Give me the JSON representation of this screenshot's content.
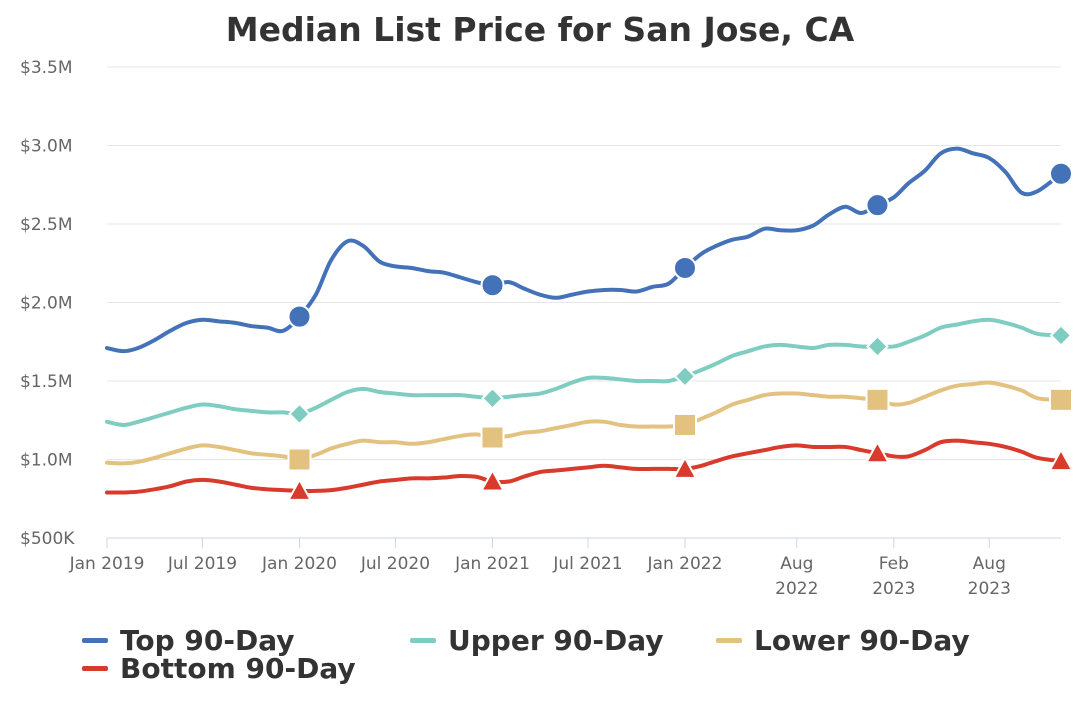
{
  "chart_data": {
    "type": "line",
    "title": "Median List Price for San Jose, CA",
    "xlabel": "",
    "ylabel": "",
    "ylim": [
      500000,
      3500000
    ],
    "yticks": [
      {
        "value": 500000,
        "label": "$500K"
      },
      {
        "value": 1000000,
        "label": "$1.0M"
      },
      {
        "value": 1500000,
        "label": "$1.5M"
      },
      {
        "value": 2000000,
        "label": "$2.0M"
      },
      {
        "value": 2500000,
        "label": "$2.5M"
      },
      {
        "value": 3000000,
        "label": "$3.0M"
      },
      {
        "value": 3500000,
        "label": "$3.5M"
      }
    ],
    "xlim": [
      "2019-01-01",
      "2023-12-15"
    ],
    "xticks": [
      {
        "date": "2019-01-01",
        "lines": [
          "Jan 2019"
        ]
      },
      {
        "date": "2019-07-01",
        "lines": [
          "Jul 2019"
        ]
      },
      {
        "date": "2020-01-01",
        "lines": [
          "Jan 2020"
        ]
      },
      {
        "date": "2020-07-01",
        "lines": [
          "Jul 2020"
        ]
      },
      {
        "date": "2021-01-01",
        "lines": [
          "Jan 2021"
        ]
      },
      {
        "date": "2021-07-01",
        "lines": [
          "Jul 2021"
        ]
      },
      {
        "date": "2022-01-01",
        "lines": [
          "Jan 2022"
        ]
      },
      {
        "date": "2022-08-01",
        "lines": [
          "Aug",
          "2022"
        ]
      },
      {
        "date": "2023-02-01",
        "lines": [
          "Feb",
          "2023"
        ]
      },
      {
        "date": "2023-08-01",
        "lines": [
          "Aug",
          "2023"
        ]
      }
    ],
    "grid": true,
    "legend_position": "bottom",
    "series": [
      {
        "name": "Top 90-Day",
        "color": "#4472b8",
        "marker": "circle",
        "points": [
          [
            "2019-01-01",
            1710000
          ],
          [
            "2019-02-01",
            1690000
          ],
          [
            "2019-03-01",
            1710000
          ],
          [
            "2019-04-01",
            1760000
          ],
          [
            "2019-05-01",
            1820000
          ],
          [
            "2019-06-01",
            1870000
          ],
          [
            "2019-07-01",
            1890000
          ],
          [
            "2019-08-01",
            1880000
          ],
          [
            "2019-09-01",
            1870000
          ],
          [
            "2019-10-01",
            1850000
          ],
          [
            "2019-11-01",
            1840000
          ],
          [
            "2019-12-01",
            1820000
          ],
          [
            "2020-01-01",
            1910000
          ],
          [
            "2020-02-01",
            2050000
          ],
          [
            "2020-03-01",
            2270000
          ],
          [
            "2020-04-01",
            2390000
          ],
          [
            "2020-05-01",
            2360000
          ],
          [
            "2020-06-01",
            2260000
          ],
          [
            "2020-07-01",
            2230000
          ],
          [
            "2020-08-01",
            2220000
          ],
          [
            "2020-09-01",
            2200000
          ],
          [
            "2020-10-01",
            2190000
          ],
          [
            "2020-11-01",
            2160000
          ],
          [
            "2020-12-01",
            2130000
          ],
          [
            "2021-01-01",
            2110000
          ],
          [
            "2021-02-01",
            2130000
          ],
          [
            "2021-03-01",
            2090000
          ],
          [
            "2021-04-01",
            2050000
          ],
          [
            "2021-05-01",
            2030000
          ],
          [
            "2021-06-01",
            2050000
          ],
          [
            "2021-07-01",
            2070000
          ],
          [
            "2021-08-01",
            2080000
          ],
          [
            "2021-09-01",
            2080000
          ],
          [
            "2021-10-01",
            2070000
          ],
          [
            "2021-11-01",
            2100000
          ],
          [
            "2021-12-01",
            2120000
          ],
          [
            "2022-01-01",
            2220000
          ],
          [
            "2022-02-01",
            2310000
          ],
          [
            "2022-03-01",
            2360000
          ],
          [
            "2022-04-01",
            2400000
          ],
          [
            "2022-05-01",
            2420000
          ],
          [
            "2022-06-01",
            2470000
          ],
          [
            "2022-07-01",
            2460000
          ],
          [
            "2022-08-01",
            2460000
          ],
          [
            "2022-09-01",
            2490000
          ],
          [
            "2022-10-01",
            2560000
          ],
          [
            "2022-11-01",
            2610000
          ],
          [
            "2022-12-01",
            2570000
          ],
          [
            "2023-01-01",
            2620000
          ],
          [
            "2023-02-01",
            2670000
          ],
          [
            "2023-03-01",
            2760000
          ],
          [
            "2023-04-01",
            2840000
          ],
          [
            "2023-05-01",
            2950000
          ],
          [
            "2023-06-01",
            2980000
          ],
          [
            "2023-07-01",
            2950000
          ],
          [
            "2023-08-01",
            2920000
          ],
          [
            "2023-09-01",
            2830000
          ],
          [
            "2023-10-01",
            2700000
          ],
          [
            "2023-11-01",
            2710000
          ],
          [
            "2023-12-15",
            2820000
          ]
        ]
      },
      {
        "name": "Upper 90-Day",
        "color": "#7fcdc0",
        "marker": "diamond",
        "points": [
          [
            "2019-01-01",
            1240000
          ],
          [
            "2019-02-01",
            1220000
          ],
          [
            "2019-03-01",
            1240000
          ],
          [
            "2019-04-01",
            1270000
          ],
          [
            "2019-05-01",
            1300000
          ],
          [
            "2019-06-01",
            1330000
          ],
          [
            "2019-07-01",
            1350000
          ],
          [
            "2019-08-01",
            1340000
          ],
          [
            "2019-09-01",
            1320000
          ],
          [
            "2019-10-01",
            1310000
          ],
          [
            "2019-11-01",
            1300000
          ],
          [
            "2019-12-01",
            1300000
          ],
          [
            "2020-01-01",
            1290000
          ],
          [
            "2020-02-01",
            1330000
          ],
          [
            "2020-03-01",
            1380000
          ],
          [
            "2020-04-01",
            1430000
          ],
          [
            "2020-05-01",
            1450000
          ],
          [
            "2020-06-01",
            1430000
          ],
          [
            "2020-07-01",
            1420000
          ],
          [
            "2020-08-01",
            1410000
          ],
          [
            "2020-09-01",
            1410000
          ],
          [
            "2020-10-01",
            1410000
          ],
          [
            "2020-11-01",
            1410000
          ],
          [
            "2020-12-01",
            1400000
          ],
          [
            "2021-01-01",
            1390000
          ],
          [
            "2021-02-01",
            1400000
          ],
          [
            "2021-03-01",
            1410000
          ],
          [
            "2021-04-01",
            1420000
          ],
          [
            "2021-05-01",
            1450000
          ],
          [
            "2021-06-01",
            1490000
          ],
          [
            "2021-07-01",
            1520000
          ],
          [
            "2021-08-01",
            1520000
          ],
          [
            "2021-09-01",
            1510000
          ],
          [
            "2021-10-01",
            1500000
          ],
          [
            "2021-11-01",
            1500000
          ],
          [
            "2021-12-01",
            1500000
          ],
          [
            "2022-01-01",
            1530000
          ],
          [
            "2022-02-01",
            1570000
          ],
          [
            "2022-03-01",
            1610000
          ],
          [
            "2022-04-01",
            1660000
          ],
          [
            "2022-05-01",
            1690000
          ],
          [
            "2022-06-01",
            1720000
          ],
          [
            "2022-07-01",
            1730000
          ],
          [
            "2022-08-01",
            1720000
          ],
          [
            "2022-09-01",
            1710000
          ],
          [
            "2022-10-01",
            1730000
          ],
          [
            "2022-11-01",
            1730000
          ],
          [
            "2022-12-01",
            1720000
          ],
          [
            "2023-01-01",
            1720000
          ],
          [
            "2023-02-01",
            1720000
          ],
          [
            "2023-03-01",
            1750000
          ],
          [
            "2023-04-01",
            1790000
          ],
          [
            "2023-05-01",
            1840000
          ],
          [
            "2023-06-01",
            1860000
          ],
          [
            "2023-07-01",
            1880000
          ],
          [
            "2023-08-01",
            1890000
          ],
          [
            "2023-09-01",
            1870000
          ],
          [
            "2023-10-01",
            1840000
          ],
          [
            "2023-11-01",
            1800000
          ],
          [
            "2023-12-15",
            1790000
          ]
        ]
      },
      {
        "name": "Lower 90-Day",
        "color": "#e3c27f",
        "marker": "square",
        "points": [
          [
            "2019-01-01",
            980000
          ],
          [
            "2019-02-01",
            975000
          ],
          [
            "2019-03-01",
            985000
          ],
          [
            "2019-04-01",
            1010000
          ],
          [
            "2019-05-01",
            1040000
          ],
          [
            "2019-06-01",
            1070000
          ],
          [
            "2019-07-01",
            1090000
          ],
          [
            "2019-08-01",
            1080000
          ],
          [
            "2019-09-01",
            1060000
          ],
          [
            "2019-10-01",
            1040000
          ],
          [
            "2019-11-01",
            1030000
          ],
          [
            "2019-12-01",
            1020000
          ],
          [
            "2020-01-01",
            1000000
          ],
          [
            "2020-02-01",
            1030000
          ],
          [
            "2020-03-01",
            1070000
          ],
          [
            "2020-04-01",
            1100000
          ],
          [
            "2020-05-01",
            1120000
          ],
          [
            "2020-06-01",
            1110000
          ],
          [
            "2020-07-01",
            1110000
          ],
          [
            "2020-08-01",
            1100000
          ],
          [
            "2020-09-01",
            1110000
          ],
          [
            "2020-10-01",
            1130000
          ],
          [
            "2020-11-01",
            1150000
          ],
          [
            "2020-12-01",
            1160000
          ],
          [
            "2021-01-01",
            1140000
          ],
          [
            "2021-02-01",
            1150000
          ],
          [
            "2021-03-01",
            1170000
          ],
          [
            "2021-04-01",
            1180000
          ],
          [
            "2021-05-01",
            1200000
          ],
          [
            "2021-06-01",
            1220000
          ],
          [
            "2021-07-01",
            1240000
          ],
          [
            "2021-08-01",
            1240000
          ],
          [
            "2021-09-01",
            1220000
          ],
          [
            "2021-10-01",
            1210000
          ],
          [
            "2021-11-01",
            1210000
          ],
          [
            "2021-12-01",
            1210000
          ],
          [
            "2022-01-01",
            1220000
          ],
          [
            "2022-02-01",
            1260000
          ],
          [
            "2022-03-01",
            1300000
          ],
          [
            "2022-04-01",
            1350000
          ],
          [
            "2022-05-01",
            1380000
          ],
          [
            "2022-06-01",
            1410000
          ],
          [
            "2022-07-01",
            1420000
          ],
          [
            "2022-08-01",
            1420000
          ],
          [
            "2022-09-01",
            1410000
          ],
          [
            "2022-10-01",
            1400000
          ],
          [
            "2022-11-01",
            1400000
          ],
          [
            "2022-12-01",
            1390000
          ],
          [
            "2023-01-01",
            1380000
          ],
          [
            "2023-02-01",
            1350000
          ],
          [
            "2023-03-01",
            1360000
          ],
          [
            "2023-04-01",
            1400000
          ],
          [
            "2023-05-01",
            1440000
          ],
          [
            "2023-06-01",
            1470000
          ],
          [
            "2023-07-01",
            1480000
          ],
          [
            "2023-08-01",
            1490000
          ],
          [
            "2023-09-01",
            1470000
          ],
          [
            "2023-10-01",
            1440000
          ],
          [
            "2023-11-01",
            1390000
          ],
          [
            "2023-12-15",
            1380000
          ]
        ]
      },
      {
        "name": "Bottom 90-Day",
        "color": "#d83a2c",
        "marker": "triangle",
        "points": [
          [
            "2019-01-01",
            790000
          ],
          [
            "2019-02-01",
            790000
          ],
          [
            "2019-03-01",
            795000
          ],
          [
            "2019-04-01",
            810000
          ],
          [
            "2019-05-01",
            830000
          ],
          [
            "2019-06-01",
            860000
          ],
          [
            "2019-07-01",
            870000
          ],
          [
            "2019-08-01",
            860000
          ],
          [
            "2019-09-01",
            840000
          ],
          [
            "2019-10-01",
            820000
          ],
          [
            "2019-11-01",
            810000
          ],
          [
            "2019-12-01",
            805000
          ],
          [
            "2020-01-01",
            800000
          ],
          [
            "2020-02-01",
            800000
          ],
          [
            "2020-03-01",
            805000
          ],
          [
            "2020-04-01",
            820000
          ],
          [
            "2020-05-01",
            840000
          ],
          [
            "2020-06-01",
            860000
          ],
          [
            "2020-07-01",
            870000
          ],
          [
            "2020-08-01",
            880000
          ],
          [
            "2020-09-01",
            880000
          ],
          [
            "2020-10-01",
            885000
          ],
          [
            "2020-11-01",
            895000
          ],
          [
            "2020-12-01",
            890000
          ],
          [
            "2021-01-01",
            860000
          ],
          [
            "2021-02-01",
            860000
          ],
          [
            "2021-03-01",
            890000
          ],
          [
            "2021-04-01",
            920000
          ],
          [
            "2021-05-01",
            930000
          ],
          [
            "2021-06-01",
            940000
          ],
          [
            "2021-07-01",
            950000
          ],
          [
            "2021-08-01",
            960000
          ],
          [
            "2021-09-01",
            950000
          ],
          [
            "2021-10-01",
            940000
          ],
          [
            "2021-11-01",
            940000
          ],
          [
            "2021-12-01",
            940000
          ],
          [
            "2022-01-01",
            940000
          ],
          [
            "2022-02-01",
            960000
          ],
          [
            "2022-03-01",
            990000
          ],
          [
            "2022-04-01",
            1020000
          ],
          [
            "2022-05-01",
            1040000
          ],
          [
            "2022-06-01",
            1060000
          ],
          [
            "2022-07-01",
            1080000
          ],
          [
            "2022-08-01",
            1090000
          ],
          [
            "2022-09-01",
            1080000
          ],
          [
            "2022-10-01",
            1080000
          ],
          [
            "2022-11-01",
            1080000
          ],
          [
            "2022-12-01",
            1060000
          ],
          [
            "2023-01-01",
            1040000
          ],
          [
            "2023-02-01",
            1020000
          ],
          [
            "2023-03-01",
            1020000
          ],
          [
            "2023-04-01",
            1060000
          ],
          [
            "2023-05-01",
            1110000
          ],
          [
            "2023-06-01",
            1120000
          ],
          [
            "2023-07-01",
            1110000
          ],
          [
            "2023-08-01",
            1100000
          ],
          [
            "2023-09-01",
            1080000
          ],
          [
            "2023-10-01",
            1050000
          ],
          [
            "2023-11-01",
            1010000
          ],
          [
            "2023-12-15",
            990000
          ]
        ]
      }
    ],
    "marker_dates": [
      "2020-01-01",
      "2021-01-01",
      "2022-01-01",
      "2023-01-01",
      "2023-12-15"
    ]
  }
}
